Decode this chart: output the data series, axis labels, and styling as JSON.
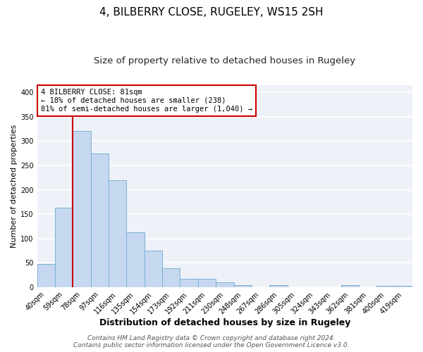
{
  "title": "4, BILBERRY CLOSE, RUGELEY, WS15 2SH",
  "subtitle": "Size of property relative to detached houses in Rugeley",
  "xlabel": "Distribution of detached houses by size in Rugeley",
  "ylabel": "Number of detached properties",
  "bar_labels": [
    "40sqm",
    "59sqm",
    "78sqm",
    "97sqm",
    "116sqm",
    "135sqm",
    "154sqm",
    "173sqm",
    "192sqm",
    "211sqm",
    "230sqm",
    "248sqm",
    "267sqm",
    "286sqm",
    "305sqm",
    "324sqm",
    "343sqm",
    "362sqm",
    "381sqm",
    "400sqm",
    "419sqm"
  ],
  "bar_values": [
    48,
    163,
    320,
    275,
    220,
    113,
    75,
    39,
    18,
    18,
    10,
    5,
    0,
    4,
    0,
    0,
    0,
    4,
    0,
    3,
    3
  ],
  "bar_color": "#c5d8f0",
  "bar_edge_color": "#7aafd4",
  "ylim": [
    0,
    415
  ],
  "yticks": [
    0,
    50,
    100,
    150,
    200,
    250,
    300,
    350,
    400
  ],
  "vline_color": "#cc0000",
  "annotation_text": "4 BILBERRY CLOSE: 81sqm\n← 18% of detached houses are smaller (238)\n81% of semi-detached houses are larger (1,040) →",
  "annotation_box_color": "#ffffff",
  "annotation_box_edgecolor": "#cc0000",
  "footer_line1": "Contains HM Land Registry data © Crown copyright and database right 2024.",
  "footer_line2": "Contains public sector information licensed under the Open Government Licence v3.0.",
  "background_color": "#ffffff",
  "plot_background_color": "#eef2f8",
  "grid_color": "#ffffff",
  "title_fontsize": 11,
  "subtitle_fontsize": 9.5,
  "xlabel_fontsize": 9,
  "ylabel_fontsize": 8,
  "tick_fontsize": 7,
  "footer_fontsize": 6.5
}
